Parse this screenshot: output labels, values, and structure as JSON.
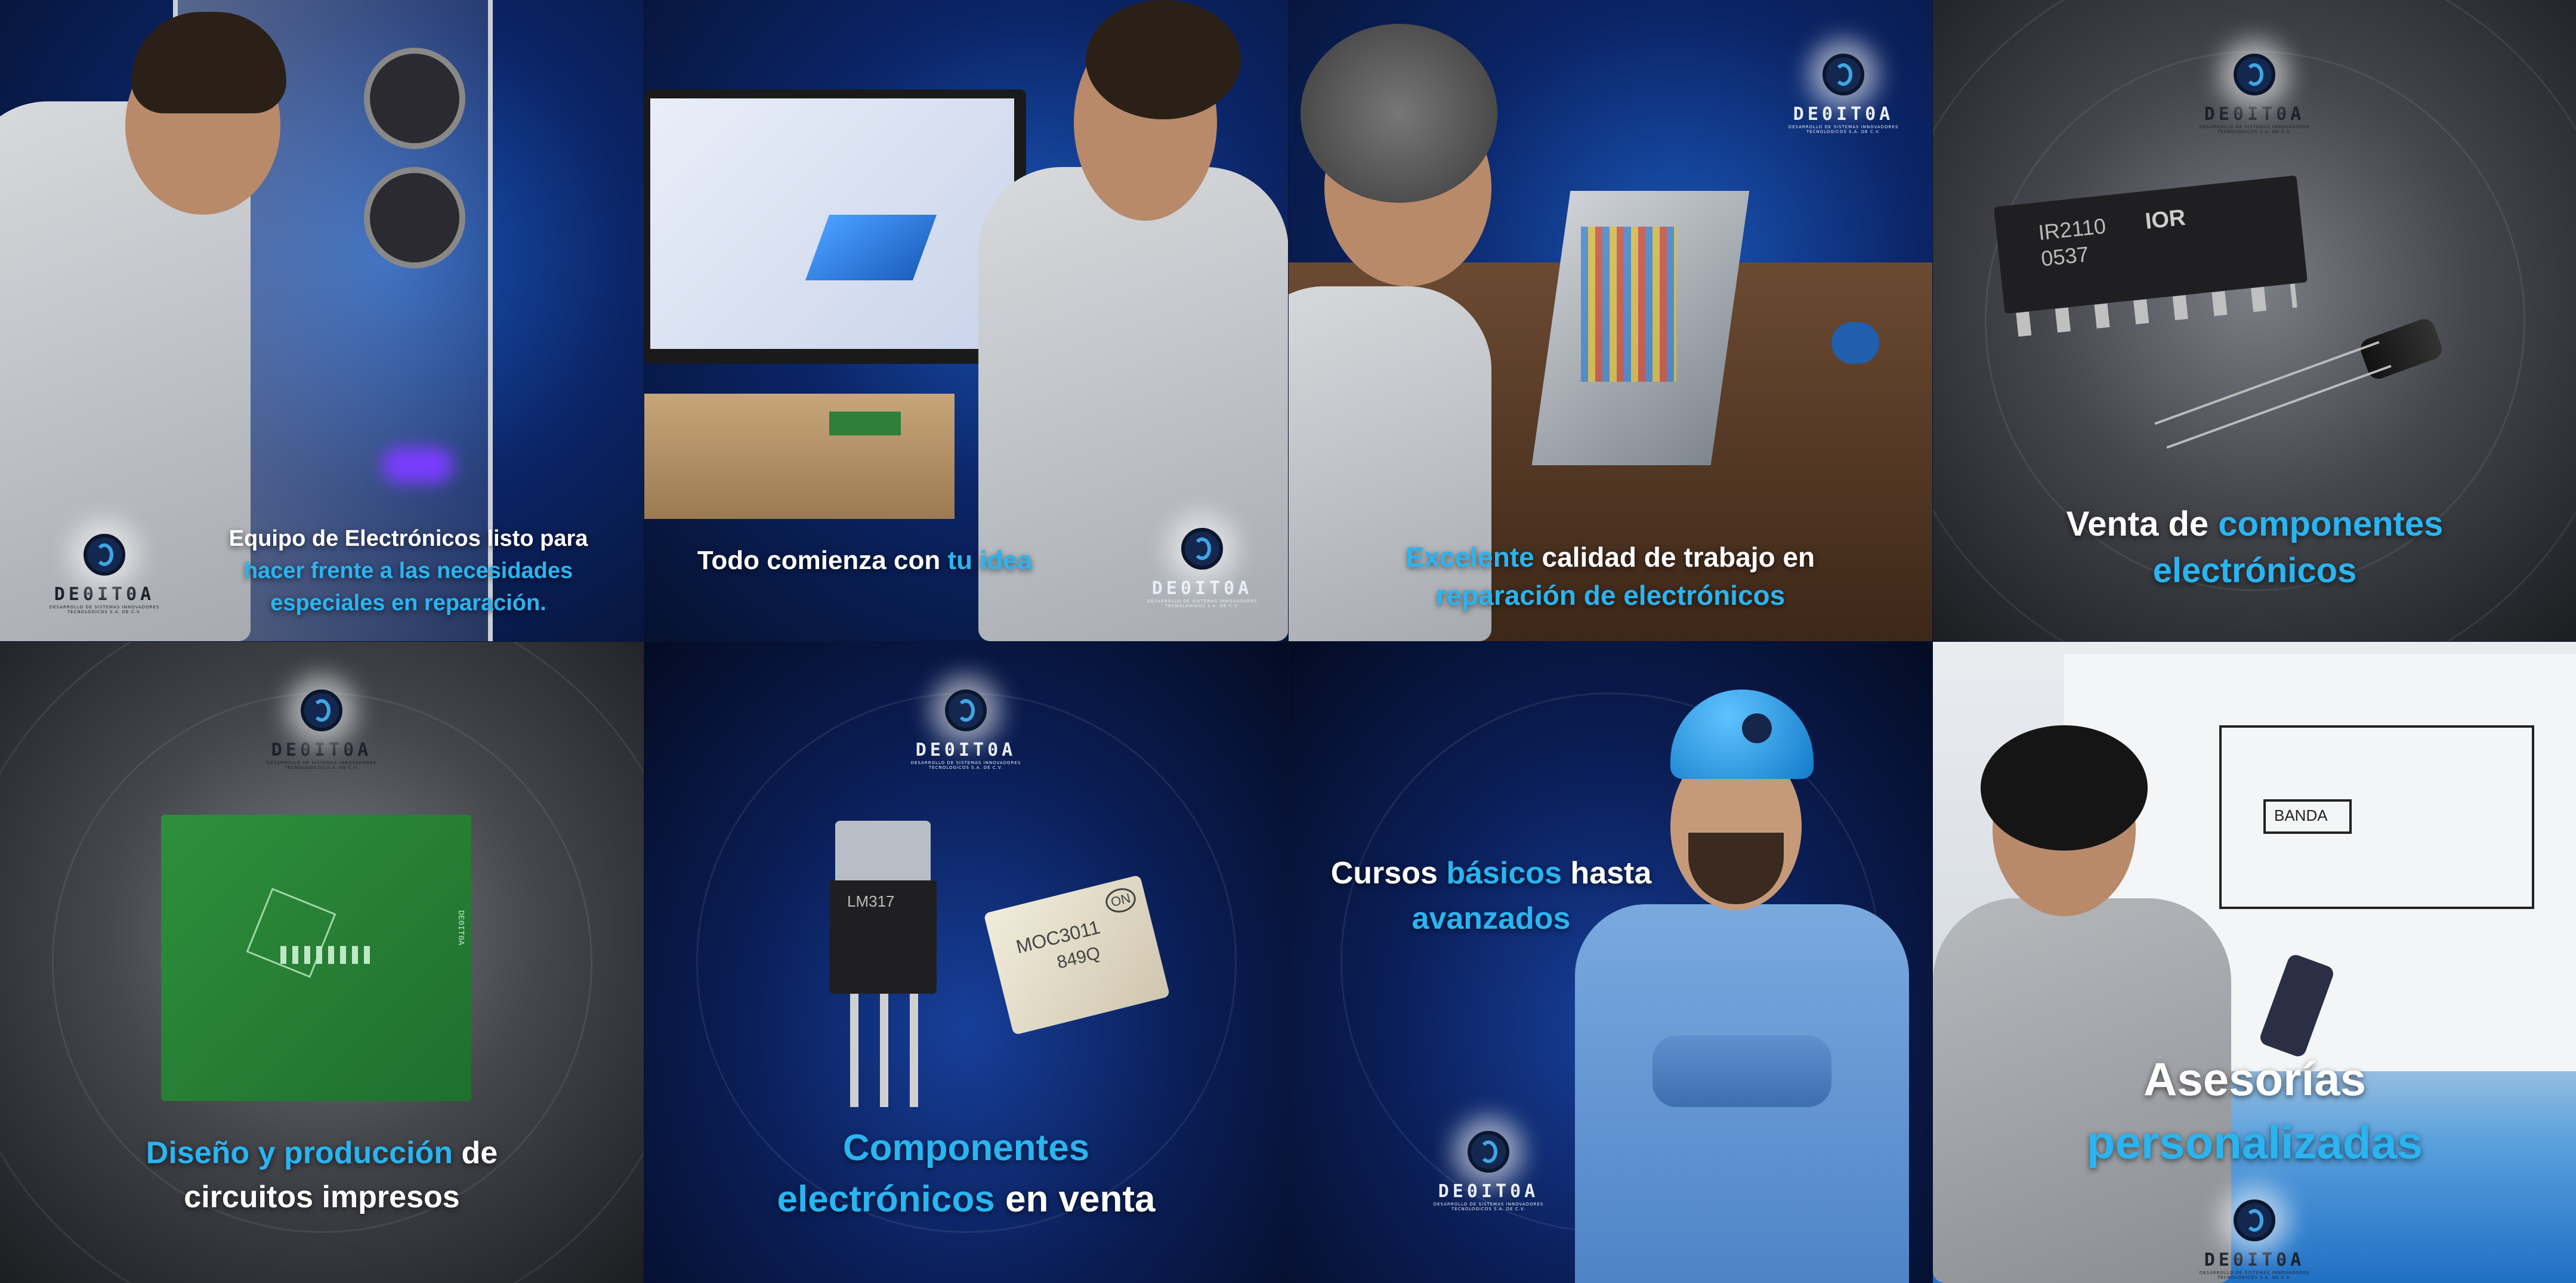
{
  "brand": {
    "name": "DE0IT0A",
    "tagline": "DESARROLLO DE SISTEMAS INNOVADORES TECNOLOGICOS S.A. DE C.V."
  },
  "tiles": [
    {
      "caption_lines": [
        [
          {
            "text": "Equipo de Electrónicos listo para",
            "accent": false
          }
        ],
        [
          {
            "text": "hacer frente a las necesidades",
            "accent": true
          }
        ],
        [
          {
            "text": "especiales en reparación.",
            "accent": true
          }
        ]
      ]
    },
    {
      "caption_lines": [
        [
          {
            "text": "Todo comienza con ",
            "accent": false
          },
          {
            "text": "tu idea",
            "accent": true
          }
        ]
      ]
    },
    {
      "caption_lines": [
        [
          {
            "text": "Excelente",
            "accent": true
          },
          {
            "text": " calidad de trabajo en",
            "accent": false
          }
        ],
        [
          {
            "text": "reparación de electrónicos",
            "accent": true
          }
        ]
      ]
    },
    {
      "caption_lines": [
        [
          {
            "text": "Venta de ",
            "accent": false
          },
          {
            "text": "componentes",
            "accent": true
          }
        ],
        [
          {
            "text": "electrónicos",
            "accent": true
          }
        ]
      ],
      "chip_label_1": "IR2110",
      "chip_label_2": "0537",
      "chip_brand": "IOR"
    },
    {
      "caption_lines": [
        [
          {
            "text": "Diseño y producción",
            "accent": true
          },
          {
            "text": " de",
            "accent": false
          }
        ],
        [
          {
            "text": "circuitos impresos",
            "accent": false
          }
        ]
      ],
      "pcb_label": "DE0IT0A"
    },
    {
      "caption_lines": [
        [
          {
            "text": "Componentes",
            "accent": true
          }
        ],
        [
          {
            "text": "electrónicos",
            "accent": true
          },
          {
            "text": " en venta",
            "accent": false
          }
        ]
      ],
      "optocoupler_label": "MOC3011",
      "optocoupler_code": "849Q",
      "optocoupler_brand": "ON",
      "regulator_label": "LM317"
    },
    {
      "caption_lines": [
        [
          {
            "text": "Cursos ",
            "accent": false
          },
          {
            "text": "básicos",
            "accent": true
          },
          {
            "text": " hasta",
            "accent": false
          }
        ],
        [
          {
            "text": "avanzados",
            "accent": true
          }
        ]
      ]
    },
    {
      "caption_lines": [
        [
          {
            "text": "Asesorías",
            "accent": false
          }
        ],
        [
          {
            "text": "personalizadas",
            "accent": true
          }
        ]
      ],
      "whiteboard_text": "BANDA"
    }
  ],
  "colors": {
    "accent": "#2ab4f0",
    "caption": "#ffffff"
  },
  "icons": [
    "deoitoa-logo"
  ]
}
